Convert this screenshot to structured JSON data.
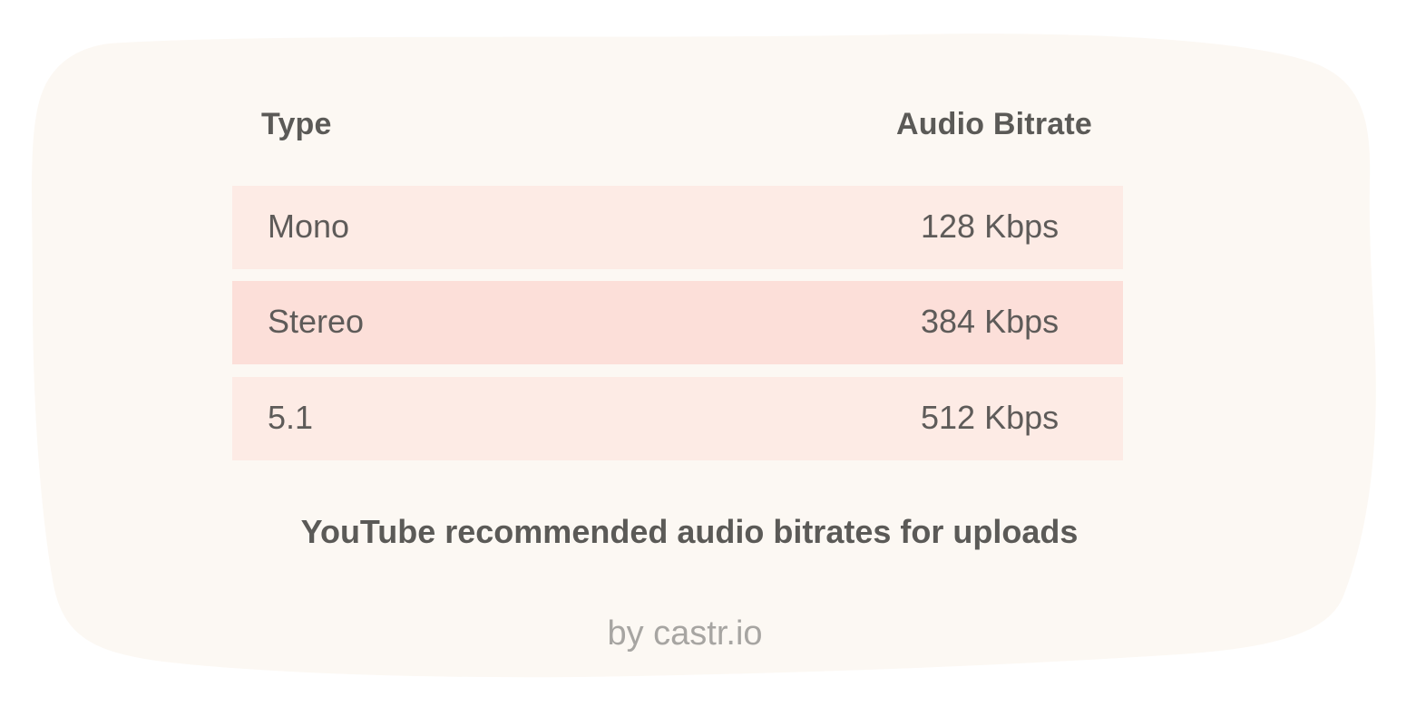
{
  "colors": {
    "background_blob": "#fcf8f3",
    "row_light": "#fdebe5",
    "row_dark": "#fcdfd9",
    "text_dark": "#5b5a57",
    "text_muted": "#a7a5a2"
  },
  "table": {
    "headers": {
      "type": "Type",
      "bitrate": "Audio Bitrate"
    },
    "rows": [
      {
        "type": "Mono",
        "bitrate": "128 Kbps",
        "shade": "row_light"
      },
      {
        "type": "Stereo",
        "bitrate": "384 Kbps",
        "shade": "row_dark"
      },
      {
        "type": "5.1",
        "bitrate": "512 Kbps",
        "shade": "row_light"
      }
    ]
  },
  "caption": "YouTube recommended audio bitrates for uploads",
  "credit": "by castr.io"
}
